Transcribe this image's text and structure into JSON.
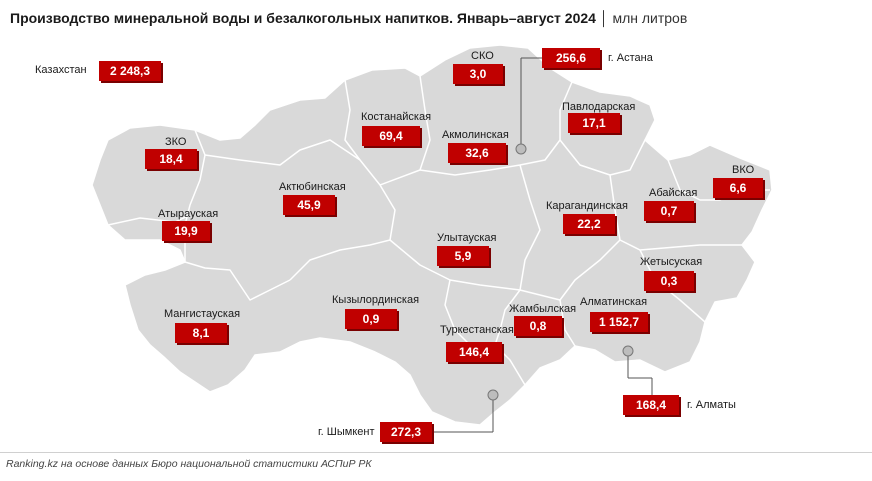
{
  "title": "Производство минеральной воды и безалкогольных напитков. Январь–август 2024",
  "title_unit": "│ млн литров",
  "footer": "Ranking.kz на основе данных Бюро национальной статистики АСПиР РК",
  "colors": {
    "map_fill": "#d9d9d9",
    "map_border": "#ffffff",
    "value_box": "#c00000"
  },
  "total": {
    "label": "Казахстан",
    "value": "2 248,3"
  },
  "regions": {
    "sko": {
      "label": "СКО",
      "value": "3,0"
    },
    "astana": {
      "label": "г. Астана",
      "value": "256,6"
    },
    "kostanay": {
      "label": "Костанайская",
      "value": "69,4"
    },
    "akmola": {
      "label": "Акмолинская",
      "value": "32,6"
    },
    "pavlodar": {
      "label": "Павлодарская",
      "value": "17,1"
    },
    "zko": {
      "label": "ЗКО",
      "value": "18,4"
    },
    "aktobe": {
      "label": "Актюбинская",
      "value": "45,9"
    },
    "vko": {
      "label": "ВКО",
      "value": "6,6"
    },
    "abay": {
      "label": "Абайская",
      "value": "0,7"
    },
    "atyrau": {
      "label": "Атырауская",
      "value": "19,9"
    },
    "karaganda": {
      "label": "Карагандинская",
      "value": "22,2"
    },
    "ulytau": {
      "label": "Улытауская",
      "value": "5,9"
    },
    "zhetisu": {
      "label": "Жетысуская",
      "value": "0,3"
    },
    "mangistau": {
      "label": "Мангистауская",
      "value": "8,1"
    },
    "kyzylorda": {
      "label": "Кызылординская",
      "value": "0,9"
    },
    "zhambyl": {
      "label": "Жамбылская",
      "value": "0,8"
    },
    "almaty_reg": {
      "label": "Алматинская",
      "value": "1 152,7"
    },
    "turkestan": {
      "label": "Туркестанская",
      "value": "146,4"
    },
    "almaty": {
      "label": "г. Алматы",
      "value": "168,4"
    },
    "shymkent": {
      "label": "г. Шымкент",
      "value": "272,3"
    }
  }
}
